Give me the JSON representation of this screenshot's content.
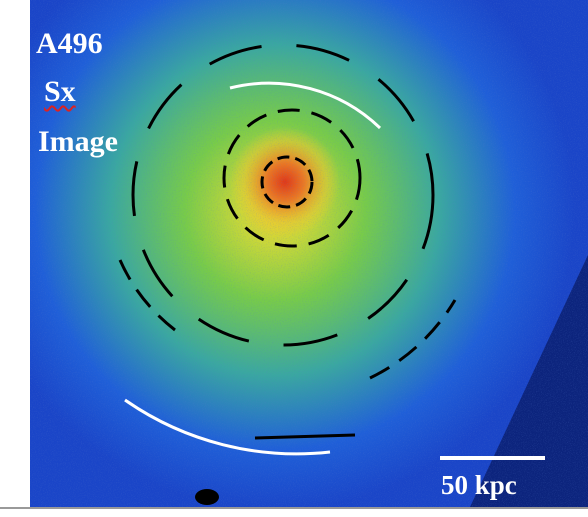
{
  "labels": {
    "cluster": "A496",
    "quantity": "Sx",
    "kind": "Image"
  },
  "scale_bar": {
    "label": "50 kpc"
  }
}
